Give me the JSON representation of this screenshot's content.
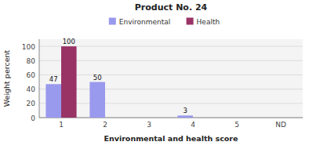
{
  "chart_data": {
    "type": "bar",
    "title": "Product No. 24",
    "x_label": "Environmental and health score",
    "y_label": "Weight percent",
    "categories": [
      "1",
      "2",
      "3",
      "4",
      "5",
      "ND"
    ],
    "series": [
      {
        "name": "Environmental",
        "color": "#9999ee",
        "values": [
          47,
          50,
          0,
          3,
          0,
          0
        ],
        "value_labels": [
          "47",
          "50",
          null,
          "3",
          null,
          null
        ]
      },
      {
        "name": "Health",
        "color": "#993366",
        "values": [
          100,
          0,
          0,
          0,
          0,
          0
        ],
        "value_labels": [
          "100",
          null,
          null,
          null,
          null,
          null
        ]
      }
    ],
    "ylim": [
      0,
      110
    ],
    "yticks": [
      0,
      20,
      40,
      60,
      80,
      100
    ],
    "grid": true,
    "legend": "top",
    "data_labels": true
  }
}
